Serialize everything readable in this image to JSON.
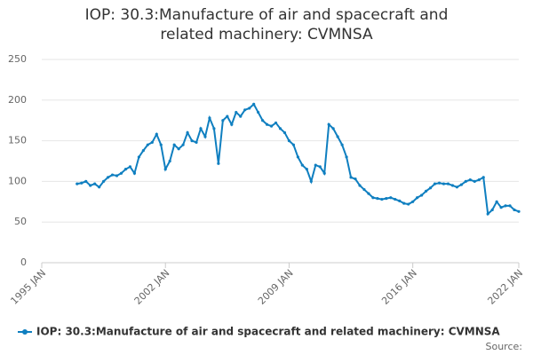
{
  "chart_data": {
    "type": "line",
    "title": "IOP: 30.3:Manufacture of air and spacecraft and related machinery: CVMNSA",
    "source": "Source:",
    "x": [
      "1997 JAN",
      "1997 APR",
      "1997 JUL",
      "1997 OCT",
      "1998 JAN",
      "1998 APR",
      "1998 JUL",
      "1998 OCT",
      "1999 JAN",
      "1999 APR",
      "1999 JUL",
      "1999 OCT",
      "2000 JAN",
      "2000 APR",
      "2000 JUL",
      "2000 OCT",
      "2001 JAN",
      "2001 APR",
      "2001 JUL",
      "2001 OCT",
      "2002 JAN",
      "2002 APR",
      "2002 JUL",
      "2002 OCT",
      "2003 JAN",
      "2003 APR",
      "2003 JUL",
      "2003 OCT",
      "2004 JAN",
      "2004 APR",
      "2004 JUL",
      "2004 OCT",
      "2005 JAN",
      "2005 APR",
      "2005 JUL",
      "2005 OCT",
      "2006 JAN",
      "2006 APR",
      "2006 JUL",
      "2006 OCT",
      "2007 JAN",
      "2007 APR",
      "2007 JUL",
      "2007 OCT",
      "2008 JAN",
      "2008 APR",
      "2008 JUL",
      "2008 OCT",
      "2009 JAN",
      "2009 APR",
      "2009 JUL",
      "2009 OCT",
      "2010 JAN",
      "2010 APR",
      "2010 JUL",
      "2010 OCT",
      "2011 JAN",
      "2011 APR",
      "2011 JUL",
      "2011 OCT",
      "2012 JAN",
      "2012 APR",
      "2012 JUL",
      "2012 OCT",
      "2013 JAN",
      "2013 APR",
      "2013 JUL",
      "2013 OCT",
      "2014 JAN",
      "2014 APR",
      "2014 JUL",
      "2014 OCT",
      "2015 JAN",
      "2015 APR",
      "2015 JUL",
      "2015 OCT",
      "2016 JAN",
      "2016 APR",
      "2016 JUL",
      "2016 OCT",
      "2017 JAN",
      "2017 APR",
      "2017 JUL",
      "2017 OCT",
      "2018 JAN",
      "2018 APR",
      "2018 JUL",
      "2018 OCT",
      "2019 JAN",
      "2019 APR",
      "2019 JUL",
      "2019 OCT",
      "2020 JAN",
      "2020 APR",
      "2020 JUL",
      "2020 OCT",
      "2021 JAN",
      "2021 APR",
      "2021 JUL",
      "2021 OCT",
      "2022 JAN"
    ],
    "series": [
      {
        "name": "IOP: 30.3:Manufacture of air and spacecraft and related machinery: CVMNSA",
        "color": "#0f7fc0",
        "values": [
          97,
          98,
          100,
          95,
          97,
          93,
          100,
          105,
          108,
          107,
          110,
          115,
          118,
          110,
          130,
          138,
          145,
          148,
          158,
          145,
          115,
          125,
          145,
          140,
          145,
          160,
          150,
          148,
          165,
          155,
          178,
          165,
          122,
          175,
          180,
          170,
          185,
          180,
          188,
          190,
          195,
          185,
          175,
          170,
          168,
          172,
          165,
          160,
          150,
          145,
          130,
          120,
          115,
          100,
          120,
          118,
          110,
          170,
          165,
          155,
          145,
          130,
          105,
          103,
          95,
          90,
          85,
          80,
          79,
          78,
          79,
          80,
          78,
          76,
          73,
          72,
          75,
          80,
          83,
          88,
          92,
          97,
          98,
          97,
          97,
          95,
          93,
          96,
          100,
          102,
          100,
          102,
          105,
          60,
          65,
          75,
          68,
          70,
          70,
          65,
          63
        ]
      }
    ],
    "xlim": [
      "1995 JAN",
      "2022 JAN"
    ],
    "xticks": [
      "1995 JAN",
      "2002 JAN",
      "2009 JAN",
      "2016 JAN",
      "2022 JAN"
    ],
    "ylim": [
      0,
      250
    ],
    "yticks": [
      0,
      50,
      100,
      150,
      200,
      250
    ],
    "grid": true
  }
}
